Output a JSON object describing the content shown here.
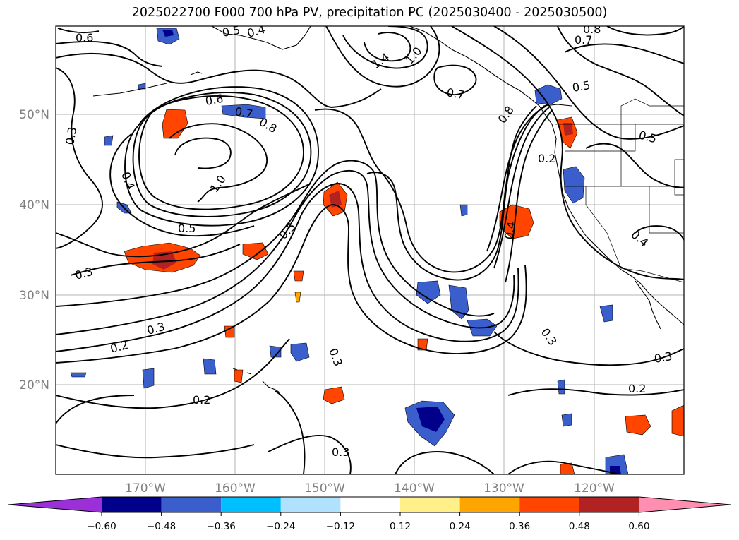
{
  "title": "2025022700 F000 700 hPa PV, precipitation PC (2025030400 - 2025030500)",
  "map": {
    "lon_labels": [
      "170°W",
      "160°W",
      "150°W",
      "140°W",
      "130°W",
      "120°W"
    ],
    "lat_labels": [
      "50°N",
      "40°N",
      "30°N",
      "20°N"
    ],
    "gridlines": true,
    "coastline_color": "#000000",
    "contour_color": "#000000"
  },
  "contour_labels": [
    {
      "text": "0.6"
    },
    {
      "text": "0.5"
    },
    {
      "text": "0.4"
    },
    {
      "text": "1.4"
    },
    {
      "text": "1.0"
    },
    {
      "text": "0.7"
    },
    {
      "text": "0.8"
    },
    {
      "text": "0.7"
    },
    {
      "text": "0.5"
    },
    {
      "text": "0.3"
    },
    {
      "text": "0.6"
    },
    {
      "text": "0.7"
    },
    {
      "text": "0.8"
    },
    {
      "text": "0.4"
    },
    {
      "text": "1.0"
    },
    {
      "text": "0.5"
    },
    {
      "text": "0.5"
    },
    {
      "text": "0.3"
    },
    {
      "text": "0.8"
    },
    {
      "text": "0.2"
    },
    {
      "text": "0.5"
    },
    {
      "text": "0.4"
    },
    {
      "text": "0.4"
    },
    {
      "text": "0.3"
    },
    {
      "text": "0.2"
    },
    {
      "text": "0.3"
    },
    {
      "text": "0.2"
    },
    {
      "text": "0.3"
    },
    {
      "text": "0.3"
    },
    {
      "text": "0.2"
    },
    {
      "text": "0.3"
    }
  ],
  "colorbar": {
    "colors": [
      "#9b30d9",
      "#00008b",
      "#3a5fcd",
      "#00bfff",
      "#b0e2ff",
      "#ffffff",
      "#fff08a",
      "#ffa500",
      "#ff4500",
      "#b22222",
      "#ff8fb0"
    ],
    "tick_labels": [
      "−0.60",
      "−0.48",
      "−0.36",
      "−0.24",
      "−0.12",
      "0.12",
      "0.24",
      "0.36",
      "0.48",
      "0.60"
    ]
  }
}
